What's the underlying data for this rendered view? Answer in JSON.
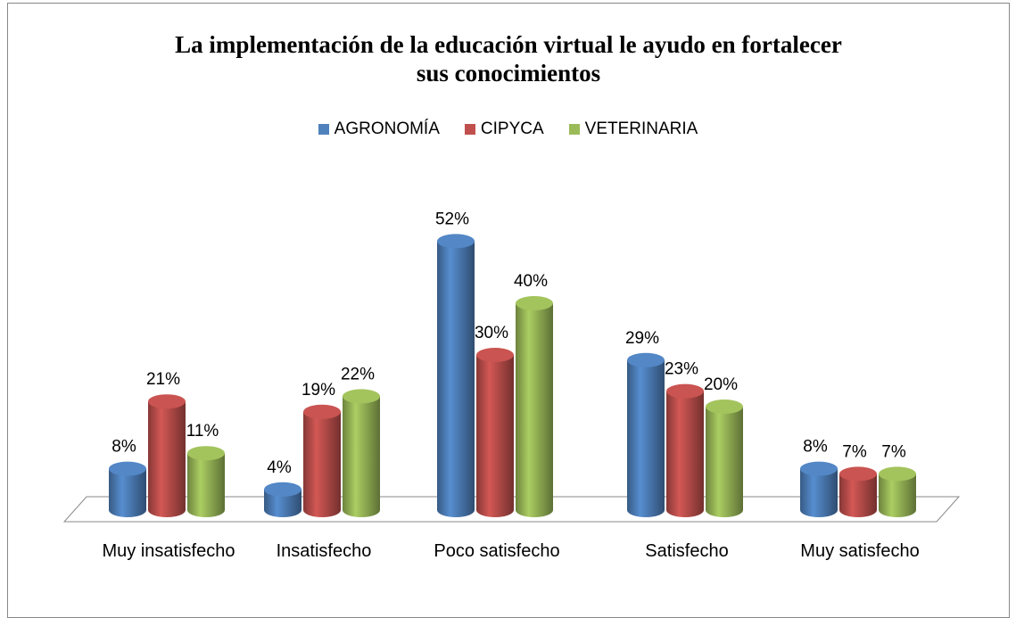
{
  "chart_data": {
    "type": "bar3d",
    "title": "La implementación de la educación virtual le ayudo en fortalecer sus conocimientos",
    "categories": [
      "Muy insatisfecho",
      "Insatisfecho",
      "Poco satisfecho",
      "Satisfecho",
      "Muy satisfecho"
    ],
    "series": [
      {
        "name": "AGRONOMÍA",
        "color": "#4f81bd",
        "values": [
          8,
          4,
          52,
          29,
          8
        ],
        "value_labels": [
          "8%",
          "4%",
          "52%",
          "29%",
          "8%"
        ]
      },
      {
        "name": "CIPYCA",
        "color": "#c0504d",
        "values": [
          21,
          19,
          30,
          23,
          7
        ],
        "value_labels": [
          "21%",
          "19%",
          "30%",
          "23%",
          "7%"
        ]
      },
      {
        "name": "VETERINARIA",
        "color": "#9bbb59",
        "values": [
          11,
          22,
          40,
          20,
          7
        ],
        "value_labels": [
          "11%",
          "22%",
          "40%",
          "20%",
          "7%"
        ]
      }
    ],
    "legend": "top"
  }
}
